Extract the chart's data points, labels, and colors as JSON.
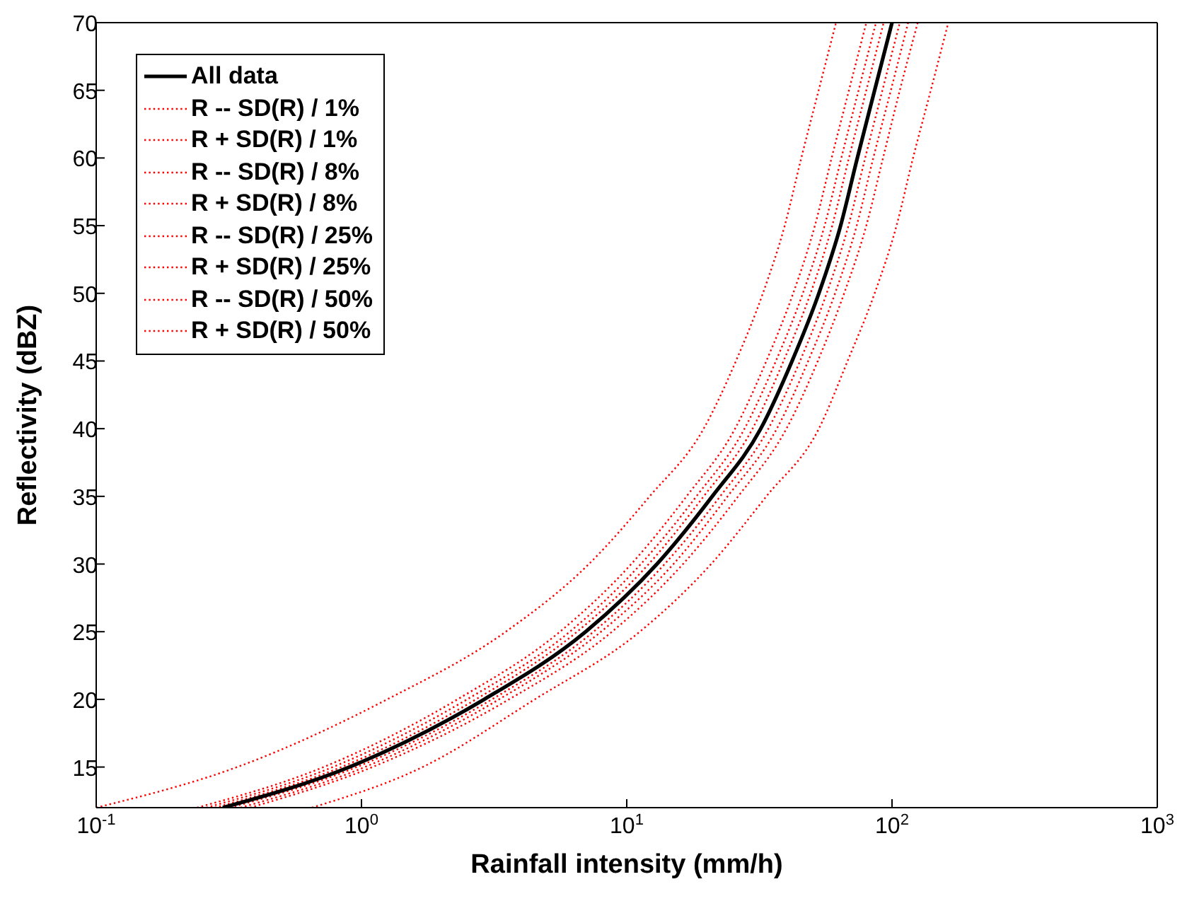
{
  "chart_data": {
    "type": "line",
    "xlabel": "Rainfall intensity (mm/h)",
    "ylabel": "Reflectivity (dBZ)",
    "log": "x",
    "xlim": [
      0.1,
      1000
    ],
    "ylim": [
      12,
      70
    ],
    "xticks": [
      {
        "value": 0.1,
        "label": "10$^{-1}$"
      },
      {
        "value": 1,
        "label": "10$^{0}$"
      },
      {
        "value": 10,
        "label": "10$^{1}$"
      },
      {
        "value": 100,
        "label": "10$^{2}$"
      },
      {
        "value": 1000,
        "label": "10$^{3}$"
      }
    ],
    "yticks": [
      15,
      20,
      25,
      30,
      35,
      40,
      45,
      50,
      55,
      60,
      65,
      70
    ],
    "legend": "top left",
    "marker": "none",
    "series": [
      {
        "name": "All data",
        "color": "#000000",
        "line_style": "solid",
        "x": [
          0.3,
          0.9,
          2.9,
          7,
          13,
          21,
          32,
          42,
          53,
          64,
          74,
          86,
          100
        ],
        "values": [
          12,
          15,
          20,
          25,
          30,
          35,
          40,
          45,
          50,
          55,
          60,
          65,
          70
        ]
      },
      {
        "name": "R -- SD(R) / 1%",
        "color": "#ff0000",
        "line_style": "dotted",
        "x": [
          0.1,
          0.34,
          1.25,
          3.5,
          7.2,
          12.2,
          19.5,
          25.8,
          32.6,
          39.4,
          45.5,
          52.9,
          61.5
        ],
        "values": [
          12,
          15,
          20,
          25,
          30,
          35,
          40,
          45,
          50,
          55,
          60,
          65,
          70
        ]
      },
      {
        "name": "R + SD(R) / 1%",
        "color": "#ff0000",
        "line_style": "dotted",
        "x": [
          0.65,
          1.7,
          4.5,
          11.2,
          20.8,
          33.6,
          53,
          68,
          86,
          104,
          120,
          140,
          163
        ],
        "values": [
          12,
          15,
          20,
          25,
          30,
          35,
          40,
          45,
          50,
          55,
          60,
          65,
          70
        ]
      },
      {
        "name": "R -- SD(R) / 8%",
        "color": "#ff0000",
        "line_style": "dotted",
        "x": [
          0.24,
          0.72,
          2.3,
          5.6,
          10.4,
          16.8,
          25.6,
          33.6,
          42.4,
          51.2,
          59.2,
          68.8,
          80
        ],
        "values": [
          12,
          15,
          20,
          25,
          30,
          35,
          40,
          45,
          50,
          55,
          60,
          65,
          70
        ]
      },
      {
        "name": "R + SD(R) / 8%",
        "color": "#ff0000",
        "line_style": "dotted",
        "x": [
          0.38,
          1.1,
          3.6,
          8.8,
          16.3,
          26.3,
          40,
          52.5,
          66,
          80,
          92.5,
          107,
          125
        ],
        "values": [
          12,
          15,
          20,
          25,
          30,
          35,
          40,
          45,
          50,
          55,
          60,
          65,
          70
        ]
      },
      {
        "name": "R -- SD(R) / 25%",
        "color": "#ff0000",
        "line_style": "dotted",
        "x": [
          0.26,
          0.78,
          2.5,
          6.1,
          11.3,
          18.3,
          27.8,
          36.5,
          46.1,
          55.7,
          64.4,
          74.8,
          87
        ],
        "values": [
          12,
          15,
          20,
          25,
          30,
          35,
          40,
          45,
          50,
          55,
          60,
          65,
          70
        ]
      },
      {
        "name": "R + SD(R) / 25%",
        "color": "#ff0000",
        "line_style": "dotted",
        "x": [
          0.35,
          1.03,
          3.3,
          8,
          15,
          24,
          36.8,
          48.3,
          61,
          73.6,
          85,
          99,
          115
        ],
        "values": [
          12,
          15,
          20,
          25,
          30,
          35,
          40,
          45,
          50,
          55,
          60,
          65,
          70
        ]
      },
      {
        "name": "R -- SD(R) / 50%",
        "color": "#ff0000",
        "line_style": "dotted",
        "x": [
          0.28,
          0.84,
          2.7,
          6.5,
          12.1,
          19.5,
          29.8,
          39,
          49.3,
          59.5,
          68.8,
          80,
          93
        ],
        "values": [
          12,
          15,
          20,
          25,
          30,
          35,
          40,
          45,
          50,
          55,
          60,
          65,
          70
        ]
      },
      {
        "name": "R + SD(R) / 50%",
        "color": "#ff0000",
        "line_style": "dotted",
        "x": [
          0.32,
          0.96,
          3.1,
          7.5,
          13.9,
          22.5,
          34.2,
          45,
          56.7,
          68.5,
          79.2,
          92,
          107
        ],
        "values": [
          12,
          15,
          20,
          25,
          30,
          35,
          40,
          45,
          50,
          55,
          60,
          65,
          70
        ]
      }
    ]
  }
}
